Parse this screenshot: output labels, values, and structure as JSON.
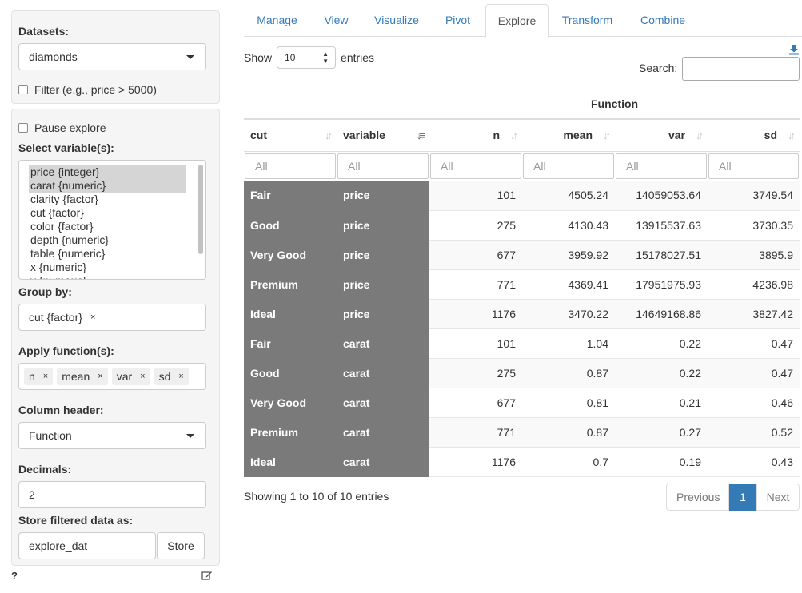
{
  "sidebar": {
    "datasets_label": "Datasets:",
    "dataset_value": "diamonds",
    "filter_label": "Filter (e.g., price > 5000)",
    "pause_label": "Pause explore",
    "select_vars_label": "Select variable(s):",
    "variables": [
      {
        "label": "price {integer}",
        "selected": true
      },
      {
        "label": "carat {numeric}",
        "selected": true
      },
      {
        "label": "clarity {factor}",
        "selected": false
      },
      {
        "label": "cut {factor}",
        "selected": false
      },
      {
        "label": "color {factor}",
        "selected": false
      },
      {
        "label": "depth {numeric}",
        "selected": false
      },
      {
        "label": "table {numeric}",
        "selected": false
      },
      {
        "label": "x {numeric}",
        "selected": false
      },
      {
        "label": "y {numeric}",
        "selected": false
      }
    ],
    "group_by_label": "Group by:",
    "group_by_tags": [
      "cut {factor}"
    ],
    "apply_fn_label": "Apply function(s):",
    "functions": [
      "n",
      "mean",
      "var",
      "sd"
    ],
    "column_header_label": "Column header:",
    "column_header_value": "Function",
    "decimals_label": "Decimals:",
    "decimals_value": "2",
    "store_label": "Store filtered data as:",
    "store_value": "explore_dat",
    "store_button": "Store",
    "help": "?",
    "remove_symbol": "×"
  },
  "tabs": [
    "Manage",
    "View",
    "Visualize",
    "Pivot",
    "Explore",
    "Transform",
    "Combine"
  ],
  "active_tab": "Explore",
  "table": {
    "show_label": "Show",
    "page_length": "10",
    "entries_label": "entries",
    "search_label": "Search:",
    "group_header": "Function",
    "columns": [
      "cut",
      "variable",
      "n",
      "mean",
      "var",
      "sd"
    ],
    "filter_placeholder": "All",
    "rows": [
      [
        "Fair",
        "price",
        "101",
        "4505.24",
        "14059053.64",
        "3749.54"
      ],
      [
        "Good",
        "price",
        "275",
        "4130.43",
        "13915537.63",
        "3730.35"
      ],
      [
        "Very Good",
        "price",
        "677",
        "3959.92",
        "15178027.51",
        "3895.9"
      ],
      [
        "Premium",
        "price",
        "771",
        "4369.41",
        "17951975.93",
        "4236.98"
      ],
      [
        "Ideal",
        "price",
        "1176",
        "3470.22",
        "14649168.86",
        "3827.42"
      ],
      [
        "Fair",
        "carat",
        "101",
        "1.04",
        "0.22",
        "0.47"
      ],
      [
        "Good",
        "carat",
        "275",
        "0.87",
        "0.22",
        "0.47"
      ],
      [
        "Very Good",
        "carat",
        "677",
        "0.81",
        "0.21",
        "0.46"
      ],
      [
        "Premium",
        "carat",
        "771",
        "0.87",
        "0.27",
        "0.52"
      ],
      [
        "Ideal",
        "carat",
        "1176",
        "0.7",
        "0.19",
        "0.43"
      ]
    ],
    "info": "Showing 1 to 10 of 10 entries",
    "pagination": {
      "previous": "Previous",
      "current": "1",
      "next": "Next"
    }
  },
  "colors": {
    "accent": "#337ab7",
    "group_cell_bg": "#7a7a7a",
    "well_bg": "#f5f5f5"
  }
}
